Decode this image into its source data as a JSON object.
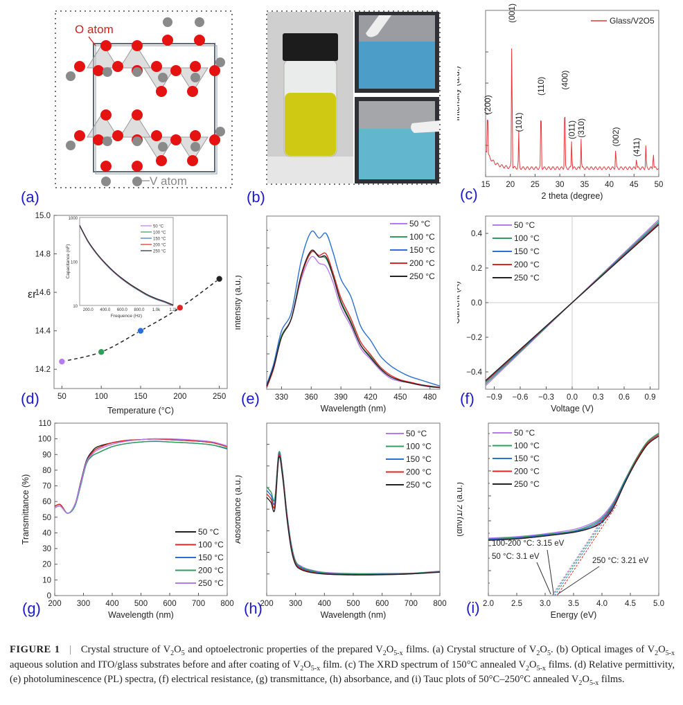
{
  "figure": {
    "panel_labels": [
      "(a)",
      "(b)",
      "(c)",
      "(d)",
      "(e)",
      "(f)",
      "(g)",
      "(h)",
      "(i)"
    ],
    "panel_a": {
      "o_atom_label": "O atom",
      "v_atom_label": "V atom"
    },
    "panel_b": {
      "description": "Vial with yellow V2O5-x aqueous solution; ITO/glass substrates before and after coating"
    },
    "colors": {
      "panel_label": "#1a1acc",
      "temp50": "#b57bee",
      "temp100": "#2e9e5b",
      "temp150": "#2a6fd6",
      "temp200": "#e02424",
      "temp250": "#222222",
      "xrd": "#e8343a"
    }
  },
  "chart_data": [
    {
      "id": "c",
      "type": "line",
      "title": "",
      "xlabel": "2 theta (degree)",
      "ylabel": "Intensity (a.u.)",
      "xlim": [
        15,
        50
      ],
      "xticks": [
        15,
        20,
        25,
        30,
        35,
        40,
        45,
        50
      ],
      "legend": [
        "Glass/V2O5"
      ],
      "legend_position": "top-right",
      "peaks": [
        {
          "x": 15.4,
          "y": 0.37,
          "label": "(200)"
        },
        {
          "x": 20.3,
          "y": 1.0,
          "label": "(001)"
        },
        {
          "x": 21.7,
          "y": 0.25,
          "label": "(101)"
        },
        {
          "x": 26.2,
          "y": 0.5,
          "label": "(110)"
        },
        {
          "x": 31.0,
          "y": 0.54,
          "label": "(400)"
        },
        {
          "x": 32.4,
          "y": 0.2,
          "label": "(011)"
        },
        {
          "x": 34.3,
          "y": 0.21,
          "label": "(310)"
        },
        {
          "x": 41.3,
          "y": 0.15,
          "label": "(002)"
        },
        {
          "x": 45.5,
          "y": 0.08,
          "label": "(411)"
        },
        {
          "x": 47.4,
          "y": 0.16,
          "label": ""
        },
        {
          "x": 48.9,
          "y": 0.12,
          "label": ""
        }
      ]
    },
    {
      "id": "d",
      "type": "scatter",
      "xlabel": "Temperature (°C)",
      "ylabel": "εr",
      "xlim": [
        40,
        260
      ],
      "ylim": [
        14.1,
        15.0
      ],
      "xticks": [
        50,
        100,
        150,
        200,
        250
      ],
      "yticks": [
        14.2,
        14.4,
        14.6,
        14.8,
        15.0
      ],
      "x": [
        50,
        100,
        150,
        200,
        250
      ],
      "y": [
        14.24,
        14.29,
        14.4,
        14.52,
        14.67
      ],
      "inset": {
        "type": "line",
        "xlabel": "Frequence (Hz)",
        "ylabel": "Capacitance (nF)",
        "xticks": [
          "200.0",
          "400.0",
          "600.0",
          "800.0",
          "1.0k",
          "1.2k"
        ],
        "yticks": [
          "10",
          "100",
          "1000"
        ],
        "legend": [
          "50 °C",
          "100 °C",
          "150 °C",
          "200 °C",
          "250 °C"
        ],
        "x": [
          100,
          200,
          300,
          400,
          500,
          600,
          700,
          800,
          900,
          1000,
          1100,
          1200
        ],
        "y": [
          650,
          280,
          150,
          90,
          58,
          40,
          29,
          22,
          17,
          14,
          12,
          10
        ]
      }
    },
    {
      "id": "e",
      "type": "line",
      "xlabel": "Wavelength (nm)",
      "ylabel": "Intensity (a.u.)",
      "xlim": [
        315,
        490
      ],
      "xticks": [
        330,
        360,
        390,
        420,
        450,
        480
      ],
      "legend": [
        "50 °C",
        "100 °C",
        "150 °C",
        "200 °C",
        "250 °C"
      ],
      "legend_position": "top-right",
      "x": [
        315,
        322,
        330,
        340,
        350,
        360,
        368,
        375,
        382,
        390,
        400,
        410,
        420,
        430,
        440,
        450,
        460,
        470,
        480,
        490
      ],
      "series": [
        {
          "name": "50 °C",
          "values": [
            0.02,
            0.15,
            0.34,
            0.45,
            0.7,
            0.84,
            0.8,
            0.78,
            0.68,
            0.52,
            0.4,
            0.26,
            0.19,
            0.12,
            0.07,
            0.05,
            0.04,
            0.025,
            0.015,
            0.01
          ]
        },
        {
          "name": "100 °C",
          "values": [
            0.02,
            0.15,
            0.34,
            0.45,
            0.72,
            0.87,
            0.84,
            0.83,
            0.72,
            0.56,
            0.43,
            0.28,
            0.21,
            0.13,
            0.08,
            0.055,
            0.04,
            0.028,
            0.018,
            0.012
          ]
        },
        {
          "name": "150 °C",
          "values": [
            0.03,
            0.16,
            0.37,
            0.49,
            0.82,
            1.0,
            0.96,
            0.99,
            0.87,
            0.7,
            0.59,
            0.4,
            0.31,
            0.21,
            0.15,
            0.11,
            0.08,
            0.06,
            0.04,
            0.02
          ]
        },
        {
          "name": "200 °C",
          "values": [
            0.01,
            0.13,
            0.33,
            0.45,
            0.72,
            0.87,
            0.85,
            0.86,
            0.74,
            0.58,
            0.45,
            0.3,
            0.22,
            0.14,
            0.09,
            0.06,
            0.045,
            0.03,
            0.02,
            0.012
          ]
        },
        {
          "name": "250 °C",
          "values": [
            0.02,
            0.14,
            0.33,
            0.45,
            0.73,
            0.88,
            0.84,
            0.84,
            0.72,
            0.55,
            0.42,
            0.28,
            0.2,
            0.13,
            0.08,
            0.055,
            0.04,
            0.027,
            0.017,
            0.01
          ]
        }
      ]
    },
    {
      "id": "f",
      "type": "line",
      "xlabel": "Voltage (V)",
      "ylabel": "Current (A)",
      "xlim": [
        -1.0,
        1.0
      ],
      "ylim": [
        -0.5,
        0.5
      ],
      "xticks": [
        -0.9,
        -0.6,
        -0.3,
        0.0,
        0.3,
        0.6,
        0.9
      ],
      "yticks": [
        -0.4,
        -0.2,
        0.0,
        0.2,
        0.4
      ],
      "legend": [
        "50 °C",
        "100 °C",
        "150 °C",
        "200 °C",
        "250 °C"
      ],
      "legend_position": "top-left",
      "x": [
        -1.0,
        1.0
      ],
      "series": [
        {
          "name": "50 °C",
          "values": [
            -0.48,
            0.48
          ]
        },
        {
          "name": "100 °C",
          "values": [
            -0.47,
            0.47
          ]
        },
        {
          "name": "150 °C",
          "values": [
            -0.46,
            0.46
          ]
        },
        {
          "name": "200 °C",
          "values": [
            -0.455,
            0.455
          ]
        },
        {
          "name": "250 °C",
          "values": [
            -0.45,
            0.45
          ]
        }
      ]
    },
    {
      "id": "g",
      "type": "line",
      "xlabel": "Wavelength (nm)",
      "ylabel": "Transmittance (%)",
      "xlim": [
        200,
        800
      ],
      "ylim": [
        0,
        110
      ],
      "xticks": [
        200,
        300,
        400,
        500,
        600,
        700,
        800
      ],
      "yticks": [
        0,
        10,
        20,
        30,
        40,
        50,
        60,
        70,
        80,
        90,
        100,
        110
      ],
      "legend": [
        "50 °C",
        "100 °C",
        "150 °C",
        "200 °C",
        "250 °C"
      ],
      "legend_position": "bottom-right",
      "x": [
        200,
        220,
        245,
        270,
        290,
        310,
        330,
        350,
        400,
        450,
        500,
        550,
        600,
        700,
        750,
        800
      ],
      "series": [
        {
          "name": "50 °C",
          "values": [
            57,
            58,
            52.5,
            58,
            72,
            86,
            92,
            95,
            97.5,
            99,
            99.5,
            100,
            99.5,
            98.5,
            97.5,
            95
          ]
        },
        {
          "name": "100 °C",
          "values": [
            57,
            58,
            52.5,
            58,
            71,
            85,
            91,
            94,
            97.5,
            99,
            99.5,
            99.8,
            99.5,
            98.5,
            97.5,
            95
          ]
        },
        {
          "name": "150 °C",
          "values": [
            56,
            57,
            52.5,
            57,
            70,
            84,
            89,
            91,
            95,
            97,
            98,
            98.5,
            98,
            97,
            96,
            93.5
          ]
        },
        {
          "name": "200 °C",
          "values": [
            56,
            57,
            52.5,
            57,
            70,
            84,
            89,
            91,
            95,
            97,
            98,
            98.3,
            98,
            97,
            96,
            94
          ]
        },
        {
          "name": "250 °C",
          "values": [
            56,
            57,
            52.5,
            58,
            71,
            85,
            90,
            93,
            96.5,
            98.5,
            99.5,
            100,
            100,
            99,
            98,
            95.5
          ]
        }
      ]
    },
    {
      "id": "h",
      "type": "line",
      "xlabel": "Wavelength (nm)",
      "ylabel": "Absorbance (a.u.)",
      "xlim": [
        200,
        800
      ],
      "xticks": [
        200,
        300,
        400,
        500,
        600,
        700,
        800
      ],
      "legend": [
        "50 °C",
        "100 °C",
        "150 °C",
        "200 °C",
        "250 °C"
      ],
      "legend_position": "top-right",
      "x": [
        200,
        215,
        228,
        242,
        255,
        270,
        285,
        300,
        320,
        350,
        400,
        500,
        600,
        700,
        800
      ],
      "series": [
        {
          "name": "50 °C",
          "values": [
            0.63,
            0.6,
            0.56,
            0.83,
            0.72,
            0.48,
            0.3,
            0.2,
            0.17,
            0.15,
            0.135,
            0.128,
            0.128,
            0.13,
            0.142
          ]
        },
        {
          "name": "100 °C",
          "values": [
            0.63,
            0.6,
            0.56,
            0.83,
            0.72,
            0.48,
            0.3,
            0.2,
            0.165,
            0.148,
            0.132,
            0.126,
            0.127,
            0.129,
            0.14
          ]
        },
        {
          "name": "150 °C",
          "values": [
            0.61,
            0.58,
            0.54,
            0.82,
            0.71,
            0.47,
            0.29,
            0.19,
            0.16,
            0.142,
            0.128,
            0.122,
            0.124,
            0.127,
            0.138
          ]
        },
        {
          "name": "200 °C",
          "values": [
            0.59,
            0.56,
            0.52,
            0.81,
            0.7,
            0.46,
            0.28,
            0.185,
            0.155,
            0.138,
            0.126,
            0.12,
            0.122,
            0.126,
            0.137
          ]
        },
        {
          "name": "250 °C",
          "values": [
            0.57,
            0.54,
            0.5,
            0.8,
            0.69,
            0.45,
            0.27,
            0.18,
            0.15,
            0.135,
            0.125,
            0.12,
            0.121,
            0.126,
            0.136
          ]
        }
      ]
    },
    {
      "id": "i",
      "type": "line",
      "xlabel": "Energy (eV)",
      "ylabel": "(αhν)1/2 (a.u.)",
      "xlim": [
        2.0,
        5.0
      ],
      "xticks": [
        2.0,
        2.5,
        3.0,
        3.5,
        4.0,
        4.5,
        5.0
      ],
      "legend": [
        "50 °C",
        "100 °C",
        "150 °C",
        "200 °C",
        "250 °C"
      ],
      "legend_position": "top-left",
      "x": [
        2.0,
        2.5,
        3.0,
        3.5,
        3.8,
        4.0,
        4.2,
        4.4,
        4.6,
        4.8,
        5.0
      ],
      "series": [
        {
          "name": "50 °C",
          "values": [
            0.4,
            0.41,
            0.43,
            0.46,
            0.5,
            0.55,
            0.65,
            0.8,
            0.95,
            1.07,
            1.13
          ]
        },
        {
          "name": "100 °C",
          "values": [
            0.395,
            0.405,
            0.425,
            0.45,
            0.49,
            0.54,
            0.64,
            0.8,
            0.95,
            1.07,
            1.13
          ]
        },
        {
          "name": "150 °C",
          "values": [
            0.39,
            0.4,
            0.42,
            0.445,
            0.48,
            0.53,
            0.63,
            0.79,
            0.94,
            1.06,
            1.12
          ]
        },
        {
          "name": "200 °C",
          "values": [
            0.385,
            0.395,
            0.415,
            0.44,
            0.47,
            0.52,
            0.62,
            0.78,
            0.94,
            1.06,
            1.12
          ]
        },
        {
          "name": "250 °C",
          "values": [
            0.385,
            0.395,
            0.415,
            0.44,
            0.47,
            0.51,
            0.61,
            0.78,
            0.93,
            1.05,
            1.11
          ]
        }
      ],
      "bandgaps": [
        {
          "label": "50 °C: 3.1 eV",
          "value": 3.1
        },
        {
          "label": "100-200 °C: 3.15 eV",
          "value": 3.15
        },
        {
          "label": "250 °C: 3.21 eV",
          "value": 3.21
        }
      ]
    }
  ],
  "caption": {
    "figure_label": "FIGURE 1",
    "separator": "|",
    "text_parts": [
      "Crystal structure of V",
      "2",
      "O",
      "5",
      " and optoelectronic properties of the prepared V",
      "2",
      "O",
      "5-x",
      " films. (a) Crystal structure of V",
      "2",
      "O",
      "5",
      ". (b) Optical images of V",
      "2",
      "O",
      "5-x",
      " aqueous solution and ITO/glass substrates before and after coating of V",
      "2",
      "O",
      "5-x",
      " film. (c) The XRD spectrum of 150°C annealed V",
      "2",
      "O",
      "5-x",
      " films. (d) Relative permittivity, (e) photoluminescence (PL) spectra, (f) electrical resistance, (g) transmittance, (h) absorbance, and (i) Tauc plots of 50°C–250°C annealed V",
      "2",
      "O",
      "5-x",
      " films."
    ]
  }
}
